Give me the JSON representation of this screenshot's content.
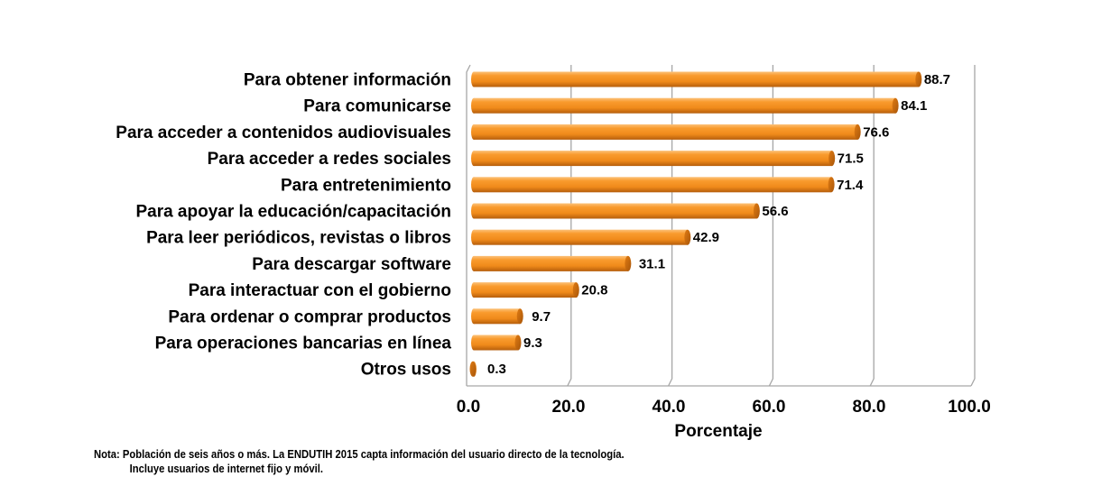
{
  "chart_data": {
    "type": "bar",
    "orientation": "horizontal",
    "style": "3d-cylinder",
    "categories": [
      "Para obtener información",
      "Para comunicarse",
      "Para acceder a contenidos audiovisuales",
      "Para acceder a redes sociales",
      "Para entretenimiento",
      "Para apoyar la educación/capacitación",
      "Para leer periódicos, revistas o libros",
      "Para descargar software",
      "Para interactuar con el gobierno",
      "Para ordenar o comprar productos",
      "Para operaciones bancarias en línea",
      "Otros usos"
    ],
    "values": [
      88.7,
      84.1,
      76.6,
      71.5,
      71.4,
      56.6,
      42.9,
      31.1,
      20.8,
      9.7,
      9.3,
      0.3
    ],
    "value_labels": [
      "88.7",
      "84.1",
      "76.6",
      "71.5",
      "71.4",
      "56.6",
      "42.9",
      "31.1",
      "20.8",
      "9.7",
      "9.3",
      "0.3"
    ],
    "xlabel": "Porcentaje",
    "ylabel": "",
    "title": "",
    "xlim": [
      0,
      100
    ],
    "xticks": [
      "0.0",
      "20.0",
      "40.0",
      "60.0",
      "80.0",
      "100.0"
    ],
    "grid": "vertical",
    "legend": "none",
    "bar_color": "#F7941D",
    "bar_dark_color": "#C86A0E",
    "grid_color": "#A6A6A6"
  },
  "note": {
    "line1": "Nota: Población de seis años o más. La ENDUTIH 2015 capta información del usuario directo de la tecnología.",
    "line2": "Incluye usuarios de internet fijo y móvil."
  }
}
